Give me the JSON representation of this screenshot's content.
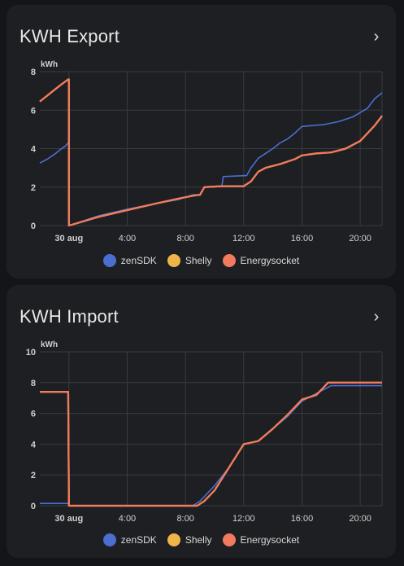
{
  "colors": {
    "background": "#141518",
    "card": "#1e1f22",
    "grid": "#3a3b3f",
    "text": "#e1e1e1",
    "zenSDK": "#4b6ed1",
    "Shelly": "#f0b548",
    "Energysocket": "#f27a5f"
  },
  "icons": {
    "chevron": "chevron-right-icon",
    "legend_marker": "circle"
  },
  "legend": [
    {
      "label": "zenSDK",
      "color": "#4b6ed1"
    },
    {
      "label": "Shelly",
      "color": "#f0b548"
    },
    {
      "label": "Energysocket",
      "color": "#f27a5f"
    }
  ],
  "export": {
    "title": "KWH Export",
    "chart_data": {
      "type": "line",
      "ylabel": "kWh",
      "ylim": [
        0,
        8
      ],
      "yticks": [
        0,
        2,
        4,
        6,
        8
      ],
      "xlim": [
        -2.0,
        21.5
      ],
      "xticks": [
        {
          "x": 0,
          "label": "30 aug",
          "bold": true
        },
        {
          "x": 4,
          "label": "4:00"
        },
        {
          "x": 8,
          "label": "8:00"
        },
        {
          "x": 12,
          "label": "12:00"
        },
        {
          "x": 16,
          "label": "16:00"
        },
        {
          "x": 20,
          "label": "20:00"
        }
      ],
      "grid": true,
      "series": [
        {
          "name": "zenSDK",
          "color": "#4b6ed1",
          "points": [
            [
              -2.0,
              3.25
            ],
            [
              -1.5,
              3.45
            ],
            [
              -1.0,
              3.7
            ],
            [
              -0.6,
              3.95
            ],
            [
              -0.3,
              4.1
            ],
            [
              -0.05,
              4.3
            ],
            [
              0.0,
              4.3
            ],
            [
              0.0,
              0.0
            ],
            [
              2.0,
              0.5
            ],
            [
              4.0,
              0.85
            ],
            [
              6.0,
              1.15
            ],
            [
              7.5,
              1.35
            ],
            [
              8.5,
              1.6
            ],
            [
              9.0,
              1.6
            ],
            [
              9.3,
              2.0
            ],
            [
              10.5,
              2.05
            ],
            [
              10.6,
              2.55
            ],
            [
              12.2,
              2.6
            ],
            [
              12.5,
              3.0
            ],
            [
              13.0,
              3.5
            ],
            [
              13.5,
              3.75
            ],
            [
              14.0,
              4.0
            ],
            [
              14.5,
              4.3
            ],
            [
              15.0,
              4.5
            ],
            [
              15.5,
              4.8
            ],
            [
              16.0,
              5.15
            ],
            [
              17.5,
              5.25
            ],
            [
              18.5,
              5.4
            ],
            [
              19.5,
              5.65
            ],
            [
              20.5,
              6.1
            ],
            [
              21.0,
              6.6
            ],
            [
              21.5,
              6.9
            ]
          ]
        },
        {
          "name": "Shelly",
          "color": "#f0b548",
          "points": [
            [
              -2.0,
              6.45
            ],
            [
              -1.5,
              6.75
            ],
            [
              -1.0,
              7.05
            ],
            [
              -0.5,
              7.35
            ],
            [
              -0.05,
              7.6
            ],
            [
              0.0,
              7.6
            ],
            [
              0.0,
              0.0
            ],
            [
              2.0,
              0.45
            ],
            [
              4.0,
              0.8
            ],
            [
              6.0,
              1.15
            ],
            [
              7.5,
              1.4
            ],
            [
              8.5,
              1.55
            ],
            [
              9.0,
              1.6
            ],
            [
              9.3,
              2.0
            ],
            [
              10.5,
              2.05
            ],
            [
              12.0,
              2.05
            ],
            [
              12.5,
              2.3
            ],
            [
              13.0,
              2.8
            ],
            [
              13.5,
              3.0
            ],
            [
              14.5,
              3.2
            ],
            [
              15.5,
              3.45
            ],
            [
              16.0,
              3.65
            ],
            [
              17.0,
              3.75
            ],
            [
              18.0,
              3.8
            ],
            [
              19.0,
              4.0
            ],
            [
              20.0,
              4.4
            ],
            [
              21.0,
              5.2
            ],
            [
              21.5,
              5.7
            ]
          ]
        },
        {
          "name": "Energysocket",
          "color": "#f27a5f",
          "points": [
            [
              -2.0,
              6.45
            ],
            [
              -1.5,
              6.75
            ],
            [
              -1.0,
              7.05
            ],
            [
              -0.5,
              7.35
            ],
            [
              -0.05,
              7.6
            ],
            [
              0.0,
              7.6
            ],
            [
              0.0,
              0.0
            ],
            [
              2.0,
              0.45
            ],
            [
              4.0,
              0.8
            ],
            [
              6.0,
              1.15
            ],
            [
              7.5,
              1.4
            ],
            [
              8.5,
              1.55
            ],
            [
              9.0,
              1.6
            ],
            [
              9.3,
              2.0
            ],
            [
              10.5,
              2.05
            ],
            [
              12.0,
              2.05
            ],
            [
              12.5,
              2.3
            ],
            [
              13.0,
              2.8
            ],
            [
              13.5,
              3.0
            ],
            [
              14.5,
              3.2
            ],
            [
              15.5,
              3.45
            ],
            [
              16.0,
              3.65
            ],
            [
              17.0,
              3.75
            ],
            [
              18.0,
              3.8
            ],
            [
              19.0,
              4.0
            ],
            [
              20.0,
              4.4
            ],
            [
              21.0,
              5.2
            ],
            [
              21.5,
              5.7
            ]
          ]
        }
      ]
    }
  },
  "import": {
    "title": "KWH Import",
    "chart_data": {
      "type": "line",
      "ylabel": "kWh",
      "ylim": [
        0,
        10
      ],
      "yticks": [
        0,
        2,
        4,
        6,
        8,
        10
      ],
      "xlim": [
        -2.0,
        21.5
      ],
      "xticks": [
        {
          "x": 0,
          "label": "30 aug",
          "bold": true
        },
        {
          "x": 4,
          "label": "4:00"
        },
        {
          "x": 8,
          "label": "8:00"
        },
        {
          "x": 12,
          "label": "12:00"
        },
        {
          "x": 16,
          "label": "16:00"
        },
        {
          "x": 20,
          "label": "20:00"
        }
      ],
      "grid": true,
      "series": [
        {
          "name": "zenSDK",
          "color": "#4b6ed1",
          "points": [
            [
              -2.0,
              0.15
            ],
            [
              -0.05,
              0.15
            ],
            [
              0.0,
              0.0
            ],
            [
              8.5,
              0.0
            ],
            [
              9.0,
              0.3
            ],
            [
              10.0,
              1.3
            ],
            [
              11.0,
              2.5
            ],
            [
              12.0,
              4.0
            ],
            [
              13.0,
              4.2
            ],
            [
              14.0,
              5.0
            ],
            [
              15.0,
              5.8
            ],
            [
              16.0,
              6.8
            ],
            [
              17.0,
              7.3
            ],
            [
              18.0,
              7.8
            ],
            [
              21.5,
              7.8
            ]
          ]
        },
        {
          "name": "Shelly",
          "color": "#f0b548",
          "points": [
            [
              -2.0,
              7.4
            ],
            [
              -0.05,
              7.4
            ],
            [
              0.0,
              0.0
            ],
            [
              8.8,
              0.0
            ],
            [
              9.3,
              0.3
            ],
            [
              10.0,
              1.0
            ],
            [
              11.0,
              2.5
            ],
            [
              12.0,
              4.0
            ],
            [
              13.0,
              4.2
            ],
            [
              14.0,
              5.0
            ],
            [
              15.0,
              5.9
            ],
            [
              16.0,
              6.9
            ],
            [
              17.0,
              7.2
            ],
            [
              17.8,
              8.0
            ],
            [
              21.5,
              8.0
            ]
          ]
        },
        {
          "name": "Energysocket",
          "color": "#f27a5f",
          "points": [
            [
              -2.0,
              7.4
            ],
            [
              -0.05,
              7.4
            ],
            [
              0.0,
              0.0
            ],
            [
              8.8,
              0.0
            ],
            [
              9.3,
              0.3
            ],
            [
              10.0,
              1.0
            ],
            [
              11.0,
              2.5
            ],
            [
              12.0,
              4.0
            ],
            [
              13.0,
              4.2
            ],
            [
              14.0,
              5.0
            ],
            [
              15.0,
              5.9
            ],
            [
              16.0,
              6.9
            ],
            [
              17.0,
              7.2
            ],
            [
              17.8,
              8.0
            ],
            [
              21.5,
              8.0
            ]
          ]
        }
      ]
    }
  }
}
